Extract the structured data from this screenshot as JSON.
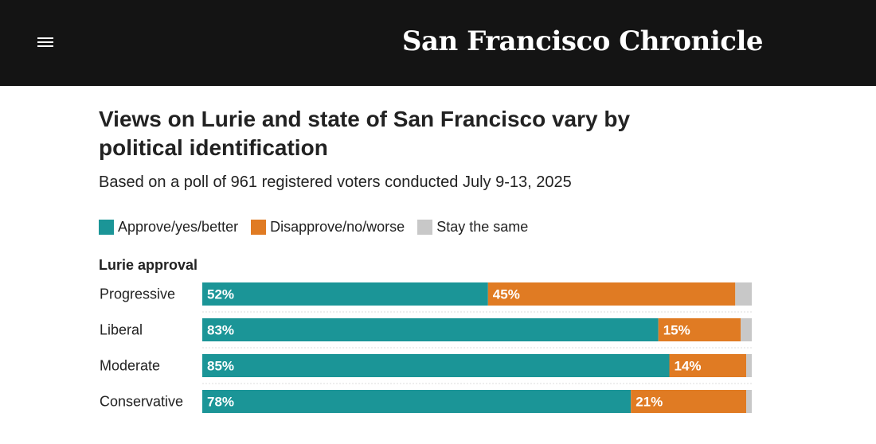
{
  "header": {
    "logo_text": "San Francisco Chronicle",
    "menu_icon": "hamburger-menu-icon"
  },
  "colors": {
    "approve": "#1b9597",
    "disapprove": "#e07b23",
    "same": "#c8c8c8",
    "header_bg": "#141414"
  },
  "chart_data": {
    "type": "bar",
    "orientation": "horizontal",
    "stacked": true,
    "title": "Views on Lurie and state of San Francisco vary by political identification",
    "subtitle": "Based on a poll of 961 registered voters conducted July 9-13, 2025",
    "legend": [
      "Approve/yes/better",
      "Disapprove/no/worse",
      "Stay the same"
    ],
    "legend_placement": "top-left",
    "section_label": "Lurie approval",
    "categories": [
      "Progressive",
      "Liberal",
      "Moderate",
      "Conservative"
    ],
    "series": [
      {
        "name": "Approve/yes/better",
        "values": [
          52,
          83,
          85,
          78
        ],
        "labels": [
          "52%",
          "83%",
          "85%",
          "78%"
        ]
      },
      {
        "name": "Disapprove/no/worse",
        "values": [
          45,
          15,
          14,
          21
        ],
        "labels": [
          "45%",
          "15%",
          "14%",
          "21%"
        ]
      },
      {
        "name": "Stay the same",
        "values": [
          3,
          2,
          1,
          1
        ]
      }
    ],
    "xlim": [
      0,
      100
    ]
  }
}
